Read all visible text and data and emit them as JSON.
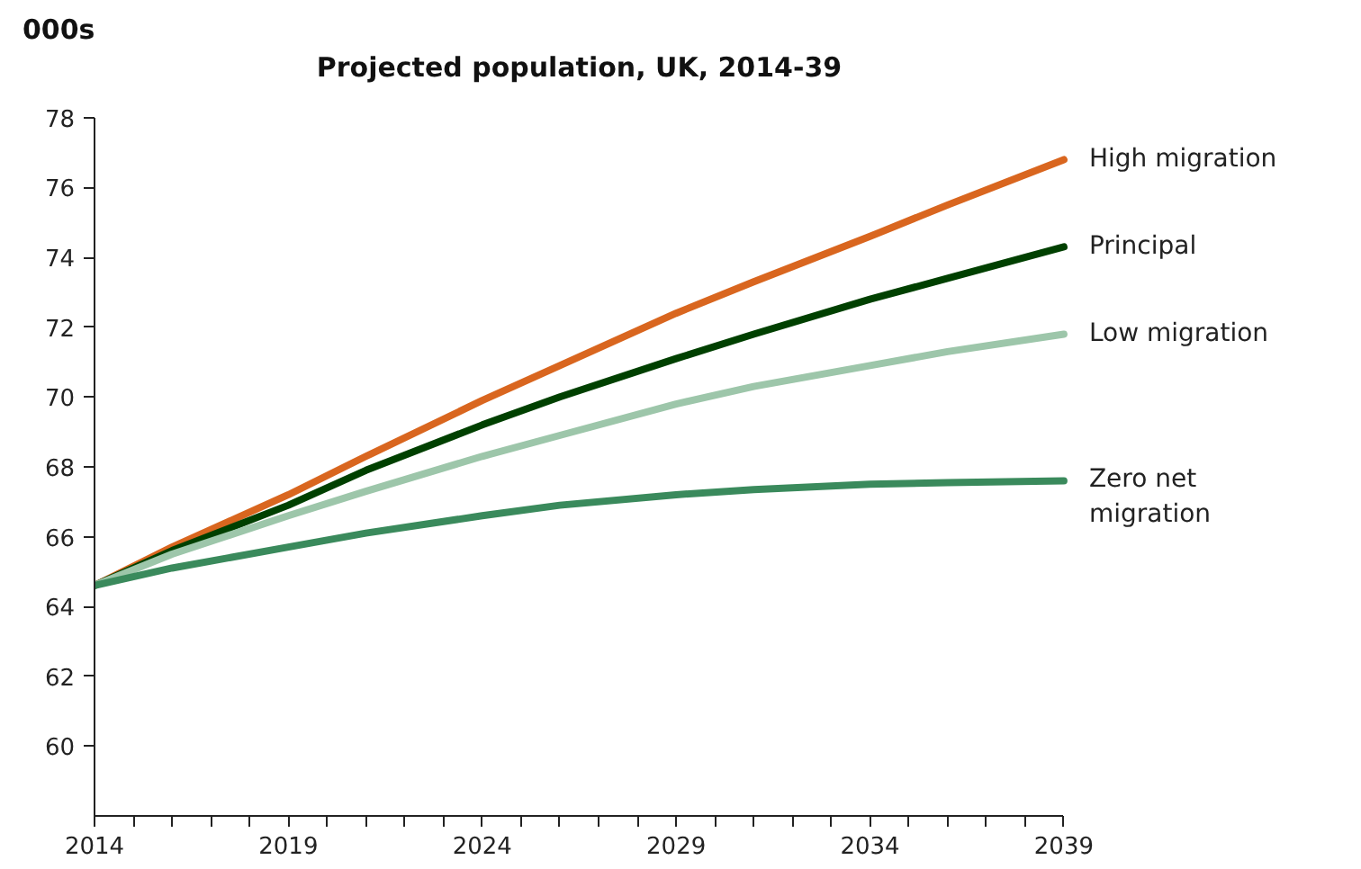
{
  "chart_data": {
    "type": "line",
    "title": "Projected population, UK, 2014-39",
    "ylabel": "000s",
    "x": [
      2014,
      2016,
      2019,
      2021,
      2024,
      2026,
      2029,
      2031,
      2034,
      2036,
      2039
    ],
    "xlim": [
      2014,
      2039
    ],
    "xticks": [
      2014,
      {
        "value": 2015,
        "label": null
      },
      {
        "value": 2016,
        "label": null
      },
      {
        "value": 2017,
        "label": null
      },
      {
        "value": 2018,
        "label": null
      },
      2019,
      {
        "value": 2020,
        "label": null
      },
      {
        "value": 2021,
        "label": null
      },
      {
        "value": 2022,
        "label": null
      },
      {
        "value": 2023,
        "label": null
      },
      2024,
      {
        "value": 2025,
        "label": null
      },
      {
        "value": 2026,
        "label": null
      },
      {
        "value": 2027,
        "label": null
      },
      {
        "value": 2028,
        "label": null
      },
      2029,
      {
        "value": 2030,
        "label": null
      },
      {
        "value": 2031,
        "label": null
      },
      {
        "value": 2032,
        "label": null
      },
      {
        "value": 2033,
        "label": null
      },
      2034,
      {
        "value": 2035,
        "label": null
      },
      {
        "value": 2036,
        "label": null
      },
      {
        "value": 2037,
        "label": null
      },
      {
        "value": 2038,
        "label": null
      },
      2039
    ],
    "ylim": [
      58,
      78
    ],
    "yticks": [
      60,
      62,
      64,
      66,
      68,
      70,
      72,
      74,
      76,
      78
    ],
    "grid": false,
    "legend": false,
    "marker": "none",
    "line_style": "solid",
    "series": [
      {
        "name": "High migration",
        "color": "#d9661f",
        "values": [
          64.6,
          65.7,
          67.2,
          68.3,
          69.9,
          70.9,
          72.4,
          73.3,
          74.6,
          75.5,
          76.8
        ]
      },
      {
        "name": "Principal",
        "color": "#004000",
        "values": [
          64.6,
          65.6,
          66.9,
          67.9,
          69.2,
          70.0,
          71.1,
          71.8,
          72.8,
          73.4,
          74.3
        ]
      },
      {
        "name": "Low migration",
        "color": "#9dc6aa",
        "values": [
          64.6,
          65.5,
          66.6,
          67.3,
          68.3,
          68.9,
          69.8,
          70.3,
          70.9,
          71.3,
          71.8
        ]
      },
      {
        "name": "Zero net\nmigration",
        "color": "#3a8a5c",
        "values": [
          64.6,
          65.1,
          65.7,
          66.1,
          66.6,
          66.9,
          67.2,
          67.35,
          67.5,
          67.55,
          67.6
        ]
      }
    ]
  }
}
